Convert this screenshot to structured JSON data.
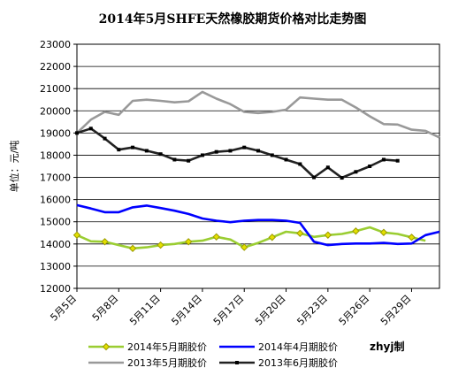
{
  "chart_data": {
    "type": "line",
    "title": "2014年5月SHFE天然橡胶期货价格对比走势图",
    "ylabel": "单位：元/吨",
    "xlabel": "",
    "ylim": [
      12000,
      23000
    ],
    "yticks": [
      "12000",
      "13000",
      "14000",
      "15000",
      "16000",
      "17000",
      "18000",
      "19000",
      "20000",
      "21000",
      "22000",
      "23000"
    ],
    "x_range": [
      5,
      31
    ],
    "xticks": [
      {
        "x": 5,
        "label": "5月5日"
      },
      {
        "x": 8,
        "label": "5月8日"
      },
      {
        "x": 11,
        "label": "5月11日"
      },
      {
        "x": 14,
        "label": "5月14日"
      },
      {
        "x": 17,
        "label": "5月17日"
      },
      {
        "x": 20,
        "label": "5月20日"
      },
      {
        "x": 23,
        "label": "5月23日"
      },
      {
        "x": 26,
        "label": "5月26日"
      },
      {
        "x": 29,
        "label": "5月29日"
      }
    ],
    "grid": "horizontal",
    "legend_position": "bottom",
    "credit": "zhyj制",
    "series": [
      {
        "name": "2014年5月期胶价",
        "color": "#9acd32",
        "marker": "diamond",
        "marker_color": "#9a9a00",
        "points": [
          [
            5,
            14400
          ],
          [
            6,
            14120
          ],
          [
            7,
            14100
          ],
          [
            8,
            13950
          ],
          [
            9,
            13800
          ],
          [
            10,
            13850
          ],
          [
            11,
            13950
          ],
          [
            12,
            14000
          ],
          [
            13,
            14100
          ],
          [
            14,
            14150
          ],
          [
            15,
            14320
          ],
          [
            16,
            14200
          ],
          [
            17,
            13850
          ],
          [
            18,
            14050
          ],
          [
            19,
            14300
          ],
          [
            20,
            14550
          ],
          [
            21,
            14480
          ],
          [
            22,
            14320
          ],
          [
            23,
            14400
          ],
          [
            24,
            14450
          ],
          [
            25,
            14580
          ],
          [
            26,
            14750
          ],
          [
            27,
            14520
          ],
          [
            28,
            14450
          ],
          [
            29,
            14300
          ],
          [
            30,
            14150
          ]
        ]
      },
      {
        "name": "2014年4月期胶价",
        "color": "#0000ff",
        "marker": "none",
        "points": [
          [
            5,
            15750
          ],
          [
            6,
            15600
          ],
          [
            7,
            15430
          ],
          [
            8,
            15430
          ],
          [
            9,
            15650
          ],
          [
            10,
            15730
          ],
          [
            11,
            15620
          ],
          [
            12,
            15500
          ],
          [
            13,
            15350
          ],
          [
            14,
            15150
          ],
          [
            15,
            15050
          ],
          [
            16,
            14980
          ],
          [
            17,
            15050
          ],
          [
            18,
            15080
          ],
          [
            19,
            15080
          ],
          [
            20,
            15050
          ],
          [
            21,
            14950
          ],
          [
            22,
            14100
          ],
          [
            23,
            13950
          ],
          [
            24,
            14000
          ],
          [
            25,
            14020
          ],
          [
            26,
            14020
          ],
          [
            27,
            14050
          ],
          [
            28,
            14000
          ],
          [
            29,
            14020
          ],
          [
            30,
            14400
          ],
          [
            31,
            14550
          ]
        ]
      },
      {
        "name": "2013年5月期胶价",
        "color": "#999999",
        "marker": "none",
        "points": [
          [
            5,
            19000
          ],
          [
            6,
            19600
          ],
          [
            7,
            19950
          ],
          [
            8,
            19820
          ],
          [
            9,
            20450
          ],
          [
            10,
            20500
          ],
          [
            11,
            20450
          ],
          [
            12,
            20380
          ],
          [
            13,
            20430
          ],
          [
            14,
            20850
          ],
          [
            15,
            20550
          ],
          [
            16,
            20300
          ],
          [
            17,
            19950
          ],
          [
            18,
            19900
          ],
          [
            19,
            19950
          ],
          [
            20,
            20050
          ],
          [
            21,
            20600
          ],
          [
            22,
            20550
          ],
          [
            23,
            20500
          ],
          [
            24,
            20500
          ],
          [
            25,
            20150
          ],
          [
            26,
            19750
          ],
          [
            27,
            19400
          ],
          [
            28,
            19380
          ],
          [
            29,
            19150
          ],
          [
            30,
            19100
          ],
          [
            31,
            18800
          ]
        ]
      },
      {
        "name": "2013年6月期胶价",
        "color": "#222222",
        "marker": "square",
        "marker_color": "#000000",
        "points": [
          [
            5,
            19000
          ],
          [
            6,
            19200
          ],
          [
            7,
            18750
          ],
          [
            8,
            18250
          ],
          [
            9,
            18350
          ],
          [
            10,
            18200
          ],
          [
            11,
            18050
          ],
          [
            12,
            17800
          ],
          [
            13,
            17750
          ],
          [
            14,
            18000
          ],
          [
            15,
            18150
          ],
          [
            16,
            18200
          ],
          [
            17,
            18350
          ],
          [
            18,
            18200
          ],
          [
            19,
            18000
          ],
          [
            20,
            17800
          ],
          [
            21,
            17600
          ],
          [
            22,
            17000
          ],
          [
            23,
            17450
          ],
          [
            24,
            16980
          ],
          [
            25,
            17250
          ],
          [
            26,
            17500
          ],
          [
            27,
            17800
          ],
          [
            28,
            17750
          ]
        ]
      }
    ]
  }
}
